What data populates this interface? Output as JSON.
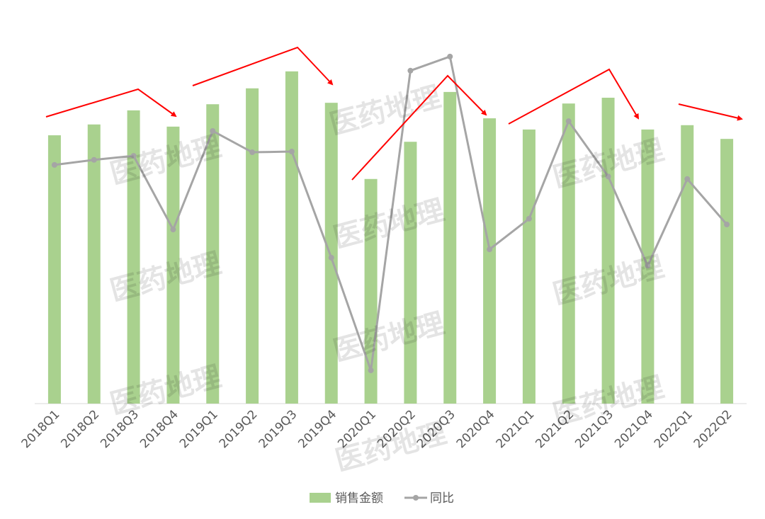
{
  "chart_data": {
    "type": "bar_line",
    "categories": [
      "2018Q1",
      "2018Q2",
      "2018Q3",
      "2018Q4",
      "2019Q1",
      "2019Q2",
      "2019Q3",
      "2019Q4",
      "2020Q1",
      "2020Q2",
      "2020Q3",
      "2020Q4",
      "2021Q1",
      "2021Q2",
      "2021Q3",
      "2021Q4",
      "2022Q1",
      "2022Q2"
    ],
    "series": [
      {
        "name": "销售金额",
        "color": "#a9d18e",
        "values": [
          74.3,
          77.3,
          81.2,
          76.7,
          82.9,
          87.3,
          92.0,
          83.3,
          62.2,
          72.5,
          86.3,
          79.0,
          75.9,
          83.1,
          84.7,
          75.9,
          77.1,
          73.3
        ]
      },
      {
        "name": "同比",
        "color": "#a5a5a5",
        "axis": "y2",
        "values": [
          6.1,
          7.5,
          8.6,
          -11.8,
          15.5,
          9.6,
          9.8,
          -19.6,
          -50.8,
          32.2,
          36.1,
          -17.3,
          -8.8,
          18.2,
          2.9,
          -21.8,
          2.2,
          -10.4
        ]
      }
    ],
    "ylim": [
      0,
      100
    ],
    "y2lim": [
      -60,
      40
    ],
    "legend": "bottom"
  },
  "watermark": "医药地理"
}
